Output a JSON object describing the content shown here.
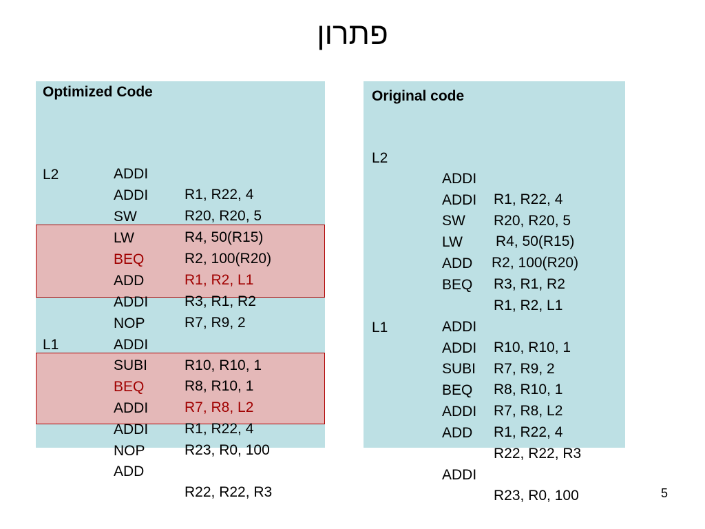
{
  "slide": {
    "title": "פתרון",
    "page_number": "5"
  },
  "optimized": {
    "heading": "Optimized Code",
    "lines": [
      {
        "label": "",
        "op": "ADDI",
        "args": "R1, R22, 4"
      },
      {
        "label": "L2",
        "op": "ADDI",
        "args": "R20, R20, 5"
      },
      {
        "label": "",
        "op": "SW",
        "args": "R4, 50(R15)"
      },
      {
        "label": "",
        "op": "LW",
        "args": "R2, 100(R20)"
      },
      {
        "label": "",
        "op": "BEQ",
        "args": "R1, R2, L1"
      },
      {
        "label": "",
        "op": "ADD",
        "args": "R3, R1, R2"
      },
      {
        "label": "",
        "op": "ADDI",
        "args": "R7, R9, 2"
      },
      {
        "label": "",
        "op": "NOP",
        "args": ""
      },
      {
        "label": "",
        "op": "ADDI",
        "args": "R10, R10, 1"
      },
      {
        "label": "L1",
        "op": "SUBI",
        "args": "R8, R10, 1"
      },
      {
        "label": "",
        "op": "BEQ",
        "args": "R7, R8, L2"
      },
      {
        "label": "",
        "op": "ADDI",
        "args": "R1, R22, 4"
      },
      {
        "label": "",
        "op": "ADDI",
        "args": "R23, R0, 100"
      },
      {
        "label": "",
        "op": "NOP",
        "args": ""
      },
      {
        "label": "",
        "op": "ADD",
        "args": "R22, R22, R3"
      }
    ],
    "highlight_color": "#e4b8b8",
    "branch_color": "#a00000"
  },
  "original": {
    "heading": "Original code",
    "lines": [
      {
        "label": "L2",
        "op": "ADDI",
        "args": "R1, R22, 4"
      },
      {
        "label": "",
        "op": "ADDI",
        "args": "R20, R20, 5"
      },
      {
        "label": "",
        "op": "SW",
        "args": "R4, 50(R15)"
      },
      {
        "label": "",
        "op": "LW",
        "args": "R2, 100(R20)"
      },
      {
        "label": "",
        "op": "ADD",
        "args": "R3, R1, R2"
      },
      {
        "label": "",
        "op": "BEQ",
        "args": "R1, R2, L1"
      },
      {
        "label": "",
        "op": "ADDI",
        "args": "R10, R10, 1"
      },
      {
        "label": "L1",
        "op": "ADDI",
        "args": "R7, R9, 2"
      },
      {
        "label": "",
        "op": "SUBI",
        "args": "R8, R10, 1"
      },
      {
        "label": "",
        "op": "BEQ",
        "args": "R7, R8, L2"
      },
      {
        "label": "",
        "op": "ADDI",
        "args": "R1, R22, 4"
      },
      {
        "label": "",
        "op": "ADD",
        "args": "R22, R22, R3"
      },
      {
        "label": "",
        "op": "ADDI",
        "args": "R23, R0, 100"
      }
    ]
  },
  "panel_color": "#bde0e4"
}
